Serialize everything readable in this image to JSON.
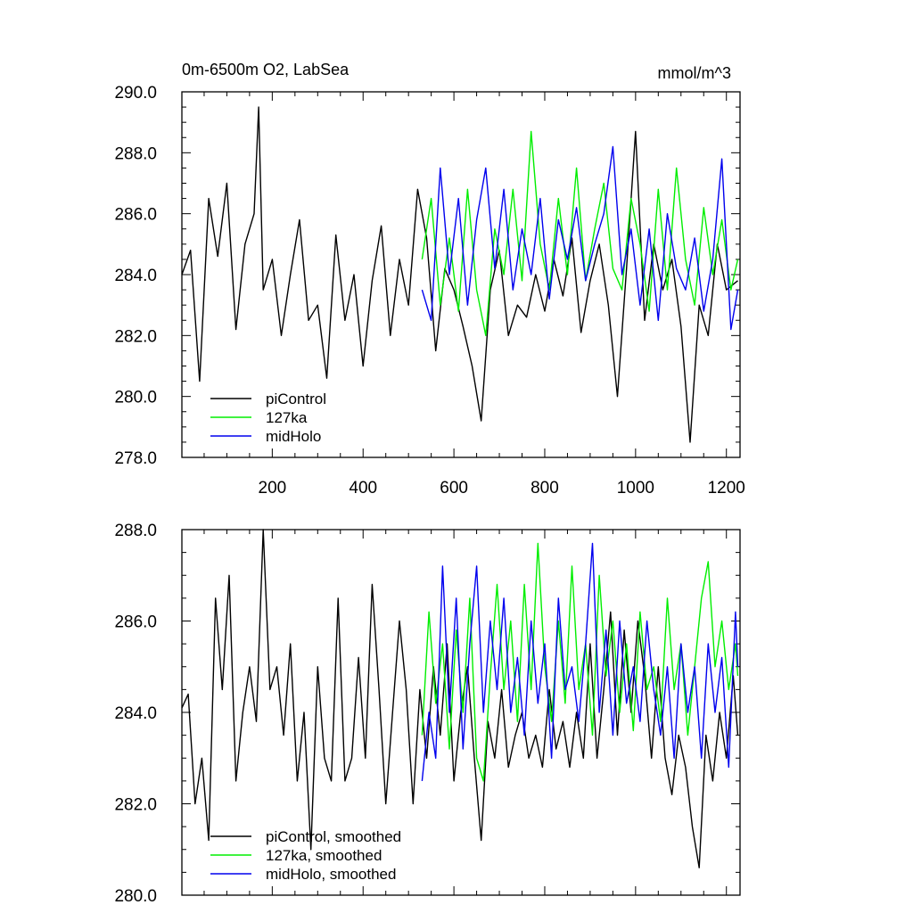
{
  "chart_data": [
    {
      "type": "line",
      "title": "0m-6500m O2, LabSea",
      "units": "mmol/m^3",
      "xlabel": "",
      "ylabel": "",
      "xlim": [
        1,
        1230
      ],
      "ylim": [
        278,
        290
      ],
      "xticks": [
        200,
        400,
        600,
        800,
        1000,
        1200
      ],
      "xtick_labels": [
        "200",
        "400",
        "600",
        "800",
        "1000",
        "1200"
      ],
      "yticks": [
        278,
        280,
        282,
        284,
        286,
        288,
        290
      ],
      "ytick_labels": [
        "278.0",
        "280.0",
        "282.0",
        "284.0",
        "286.0",
        "288.0",
        "290.0"
      ],
      "grid": false,
      "legend_position": "bottom-left",
      "series": [
        {
          "name": "piControl",
          "color": "#000000",
          "x": [
            1,
            20,
            40,
            60,
            80,
            100,
            120,
            140,
            160,
            170,
            180,
            200,
            220,
            240,
            260,
            280,
            300,
            320,
            340,
            360,
            380,
            400,
            420,
            440,
            460,
            480,
            500,
            520,
            540,
            560,
            580,
            600,
            620,
            640,
            660,
            680,
            700,
            720,
            740,
            760,
            780,
            800,
            820,
            840,
            860,
            880,
            900,
            920,
            940,
            960,
            980,
            1000,
            1020,
            1040,
            1060,
            1080,
            1100,
            1120,
            1140,
            1160,
            1180,
            1200,
            1225
          ],
          "y": [
            284.0,
            284.8,
            280.5,
            286.5,
            284.6,
            287.0,
            282.2,
            285.0,
            286.0,
            289.5,
            283.5,
            284.5,
            282.0,
            284.0,
            285.8,
            282.5,
            283.0,
            280.6,
            285.3,
            282.5,
            284.0,
            281.0,
            283.8,
            285.6,
            282.0,
            284.5,
            283.0,
            286.8,
            285.2,
            281.5,
            284.2,
            283.5,
            282.3,
            281.0,
            279.2,
            283.5,
            284.8,
            282.0,
            283.0,
            282.6,
            284.0,
            282.8,
            284.5,
            283.3,
            285.2,
            282.1,
            283.8,
            285.0,
            283.0,
            280.0,
            284.2,
            288.7,
            282.5,
            285.0,
            283.5,
            284.5,
            282.3,
            278.5,
            283.0,
            282.0,
            285.0,
            283.5,
            283.8
          ]
        },
        {
          "name": "127ka",
          "color": "#00ee00",
          "x": [
            530,
            550,
            570,
            590,
            610,
            630,
            650,
            670,
            690,
            710,
            730,
            750,
            770,
            790,
            810,
            830,
            850,
            870,
            890,
            910,
            930,
            950,
            970,
            990,
            1010,
            1030,
            1050,
            1070,
            1090,
            1110,
            1130,
            1150,
            1170,
            1190,
            1210,
            1225
          ],
          "y": [
            284.5,
            286.5,
            283.0,
            285.2,
            282.8,
            286.8,
            283.5,
            282.0,
            285.5,
            284.0,
            286.8,
            283.8,
            288.7,
            285.0,
            283.5,
            286.5,
            284.0,
            287.5,
            283.8,
            285.5,
            287.0,
            284.2,
            283.5,
            286.5,
            285.0,
            282.8,
            286.8,
            283.5,
            287.5,
            284.5,
            283.0,
            286.2,
            284.0,
            285.8,
            283.5,
            284.5
          ]
        },
        {
          "name": "midHolo",
          "color": "#0000ee",
          "x": [
            530,
            550,
            570,
            590,
            610,
            630,
            650,
            670,
            690,
            710,
            730,
            750,
            770,
            790,
            810,
            830,
            850,
            870,
            890,
            910,
            930,
            950,
            970,
            990,
            1010,
            1030,
            1050,
            1070,
            1090,
            1110,
            1130,
            1150,
            1170,
            1190,
            1210,
            1225
          ],
          "y": [
            283.5,
            282.5,
            287.5,
            284.0,
            286.5,
            283.0,
            285.8,
            287.5,
            284.2,
            286.8,
            283.5,
            285.5,
            284.0,
            286.5,
            283.2,
            285.8,
            284.5,
            286.2,
            283.8,
            285.0,
            286.0,
            288.2,
            284.0,
            285.5,
            283.0,
            285.5,
            282.5,
            286.0,
            284.2,
            283.5,
            285.2,
            282.8,
            284.5,
            287.8,
            282.2,
            283.5
          ]
        }
      ]
    },
    {
      "type": "line",
      "title": "",
      "xlabel": "",
      "ylabel": "",
      "xlim": [
        1,
        1230
      ],
      "ylim": [
        280,
        288
      ],
      "xticks": [
        200,
        400,
        600,
        800,
        1000,
        1200
      ],
      "yticks": [
        280,
        282,
        284,
        286,
        288
      ],
      "ytick_labels": [
        "280.0",
        "282.0",
        "284.0",
        "286.0",
        "288.0"
      ],
      "grid": false,
      "legend_position": "bottom-left",
      "series": [
        {
          "name": "piControl, smoothed",
          "color": "#000000",
          "x": [
            1,
            15,
            30,
            45,
            60,
            75,
            90,
            105,
            120,
            135,
            150,
            165,
            180,
            195,
            210,
            225,
            240,
            255,
            270,
            285,
            300,
            315,
            330,
            345,
            360,
            375,
            390,
            405,
            420,
            435,
            450,
            465,
            480,
            495,
            510,
            525,
            540,
            555,
            570,
            585,
            600,
            615,
            630,
            645,
            660,
            675,
            690,
            705,
            720,
            735,
            750,
            765,
            780,
            795,
            810,
            825,
            840,
            855,
            870,
            885,
            900,
            915,
            930,
            945,
            960,
            975,
            990,
            1005,
            1020,
            1035,
            1050,
            1065,
            1080,
            1095,
            1110,
            1125,
            1140,
            1155,
            1170,
            1185,
            1200,
            1215,
            1225
          ],
          "y": [
            284.1,
            284.4,
            282.0,
            283.0,
            281.2,
            286.5,
            284.5,
            287.0,
            282.5,
            284.0,
            285.0,
            283.8,
            288.0,
            284.5,
            285.0,
            283.5,
            285.5,
            282.5,
            284.0,
            281.0,
            285.0,
            283.0,
            282.5,
            286.5,
            282.5,
            283.0,
            285.2,
            283.0,
            286.8,
            284.5,
            282.0,
            284.0,
            286.0,
            284.5,
            282.0,
            284.5,
            283.0,
            285.0,
            283.5,
            285.5,
            282.5,
            284.0,
            285.0,
            283.0,
            281.2,
            283.8,
            283.0,
            284.5,
            282.8,
            283.5,
            284.0,
            283.0,
            283.5,
            282.8,
            284.5,
            283.2,
            283.8,
            282.8,
            284.0,
            283.0,
            285.5,
            283.0,
            284.5,
            286.2,
            283.5,
            285.8,
            284.0,
            286.0,
            284.8,
            283.0,
            285.0,
            283.0,
            282.2,
            283.5,
            282.8,
            281.5,
            280.6,
            283.5,
            282.5,
            284.0,
            283.0,
            284.8,
            283.5
          ]
        },
        {
          "name": "127ka, smoothed",
          "color": "#00ee00",
          "x": [
            530,
            545,
            560,
            575,
            590,
            605,
            620,
            635,
            650,
            665,
            680,
            695,
            710,
            725,
            740,
            755,
            770,
            785,
            800,
            815,
            830,
            845,
            860,
            875,
            890,
            905,
            920,
            935,
            950,
            965,
            980,
            995,
            1010,
            1025,
            1040,
            1055,
            1070,
            1085,
            1100,
            1115,
            1130,
            1145,
            1160,
            1175,
            1190,
            1205,
            1220,
            1225
          ],
          "y": [
            283.5,
            286.2,
            284.2,
            285.5,
            283.2,
            285.8,
            284.0,
            286.5,
            283.0,
            282.5,
            284.8,
            286.8,
            284.5,
            286.0,
            283.8,
            286.8,
            284.5,
            287.7,
            285.0,
            283.8,
            286.0,
            284.2,
            287.2,
            284.5,
            285.5,
            283.5,
            287.0,
            284.8,
            286.0,
            284.0,
            285.5,
            283.6,
            286.2,
            284.5,
            285.0,
            283.8,
            286.5,
            284.5,
            285.5,
            283.5,
            285.0,
            286.5,
            287.3,
            285.0,
            286.0,
            284.5,
            285.5,
            284.8
          ]
        },
        {
          "name": "midHolo, smoothed",
          "color": "#0000ee",
          "x": [
            530,
            545,
            560,
            575,
            590,
            605,
            620,
            635,
            650,
            665,
            680,
            695,
            710,
            725,
            740,
            755,
            770,
            785,
            800,
            815,
            830,
            845,
            860,
            875,
            890,
            905,
            920,
            935,
            950,
            965,
            980,
            995,
            1010,
            1025,
            1040,
            1055,
            1070,
            1085,
            1100,
            1115,
            1130,
            1145,
            1160,
            1175,
            1190,
            1205,
            1220,
            1225
          ],
          "y": [
            282.5,
            284.0,
            283.0,
            287.2,
            284.0,
            286.5,
            283.2,
            285.5,
            287.2,
            284.0,
            286.0,
            284.5,
            286.5,
            284.0,
            285.2,
            283.5,
            286.0,
            284.2,
            285.5,
            283.0,
            286.5,
            284.5,
            285.0,
            283.8,
            285.5,
            287.7,
            284.0,
            285.8,
            283.5,
            286.0,
            284.2,
            285.0,
            283.8,
            286.0,
            284.5,
            283.5,
            285.0,
            283.0,
            285.5,
            284.0,
            285.0,
            283.0,
            285.5,
            284.0,
            285.2,
            282.8,
            286.2,
            285.0
          ]
        }
      ]
    }
  ]
}
